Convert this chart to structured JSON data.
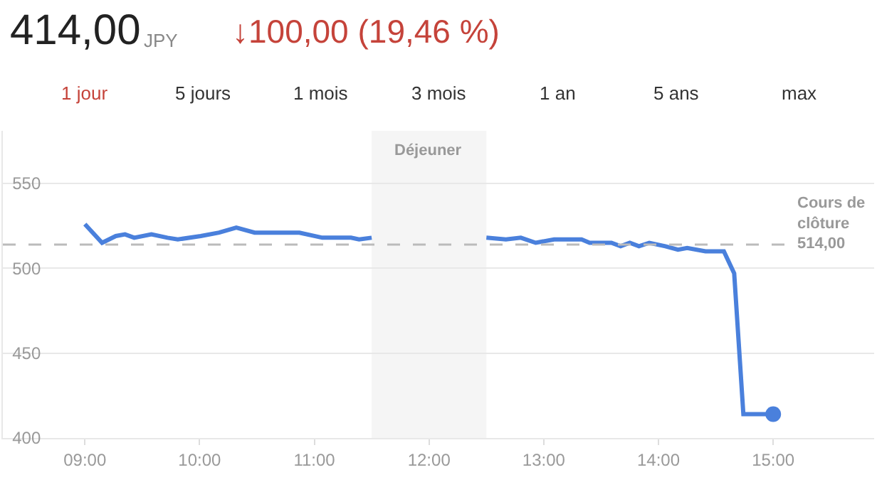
{
  "chart_data": {
    "type": "line",
    "title": "414,00",
    "subtitle": "JPY",
    "annotations": [
      "↓100,00 (19,46 %)",
      "1 jour",
      "5 jours",
      "1 mois",
      "3 mois",
      "1 an",
      "5 ans",
      "max"
    ],
    "series": [
      {
        "name": null,
        "color": "#4a80dc",
        "x": [
          9.0,
          9.15,
          9.27,
          9.35,
          9.43,
          9.58,
          9.72,
          9.81,
          10.01,
          10.17,
          10.32,
          10.48,
          10.87,
          11.07,
          11.32,
          11.39,
          11.5,
          null,
          12.5,
          12.67,
          12.8,
          12.93,
          13.09,
          13.33,
          13.4,
          13.59,
          13.67,
          13.75,
          13.83,
          13.92,
          14.06,
          14.17,
          14.25,
          14.41,
          14.57,
          14.66,
          14.74,
          15.0
        ],
        "values": [
          526,
          515,
          519,
          520,
          518,
          520,
          518,
          517,
          519,
          521,
          524,
          521,
          521,
          518,
          518,
          517,
          518,
          null,
          518,
          517,
          518,
          515,
          517,
          517,
          515,
          515,
          513,
          515,
          513,
          515,
          513,
          511,
          512,
          510,
          510,
          497,
          414,
          414
        ],
        "marker": "none"
      },
      {
        "name": null,
        "type": "scatter",
        "color": "#4a80dc",
        "x": [
          15.0
        ],
        "values": [
          414
        ],
        "marker": "circle"
      }
    ],
    "xlim": [
      8.285,
      15.88
    ],
    "xticks": [
      {
        "value": 9,
        "label": "09:00"
      },
      {
        "value": 10,
        "label": "10:00"
      },
      {
        "value": 11,
        "label": "11:00"
      },
      {
        "value": 12,
        "label": "12:00"
      },
      {
        "value": 13,
        "label": "13:00"
      },
      {
        "value": 14,
        "label": "14:00"
      },
      {
        "value": 15,
        "label": "15:00"
      }
    ],
    "ylim": [
      400,
      581
    ],
    "yticks": [
      400,
      450,
      500,
      550
    ],
    "grid": "y",
    "line_style": "solid",
    "ref_lines": [
      {
        "axis": "y",
        "value": 514,
        "label": "Cours de\nclôture\n514,00",
        "color": "#bbbbbb",
        "line_style": "dashed"
      }
    ],
    "bands": [
      {
        "axis": "x",
        "from": 11.5,
        "to": 12.5,
        "label": "Déjeuner",
        "color": "#f5f5f5"
      }
    ]
  }
}
